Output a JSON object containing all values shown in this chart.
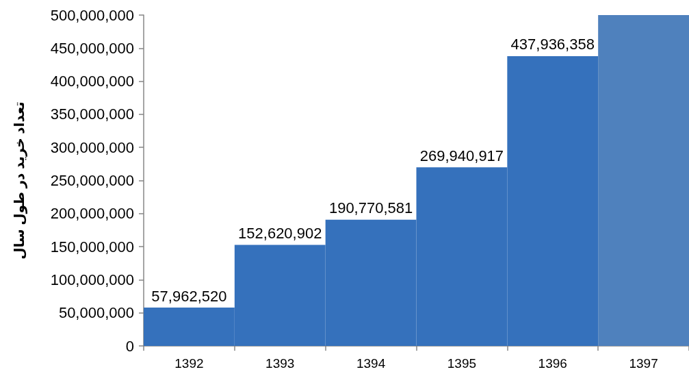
{
  "chart_data": {
    "type": "bar",
    "ylabel": "تعداد خرید در طول سال",
    "categories": [
      "1392",
      "1393",
      "1394",
      "1395",
      "1396",
      "1397"
    ],
    "values": [
      57962520,
      152620902,
      190770581,
      269940917,
      437936358,
      500000000
    ],
    "colors": [
      "#3571bc",
      "#3571bc",
      "#3571bc",
      "#3571bc",
      "#3571bc",
      "#4f81bd"
    ],
    "value_labels": [
      "57,962,520",
      "152,620,902",
      "190,770,581",
      "269,940,917",
      "437,936,358",
      null
    ],
    "ylim": [
      0,
      500000000
    ],
    "yticks": [
      {
        "value": 0,
        "label": "0"
      },
      {
        "value": 50000000,
        "label": "50,000,000"
      },
      {
        "value": 100000000,
        "label": "100,000,000"
      },
      {
        "value": 150000000,
        "label": "150,000,000"
      },
      {
        "value": 200000000,
        "label": "200,000,000"
      },
      {
        "value": 250000000,
        "label": "250,000,000"
      },
      {
        "value": 300000000,
        "label": "300,000,000"
      },
      {
        "value": 350000000,
        "label": "350,000,000"
      },
      {
        "value": 400000000,
        "label": "400,000,000"
      },
      {
        "value": 450000000,
        "label": "450,000,000"
      },
      {
        "value": 500000000,
        "label": "500,000,000"
      }
    ]
  }
}
